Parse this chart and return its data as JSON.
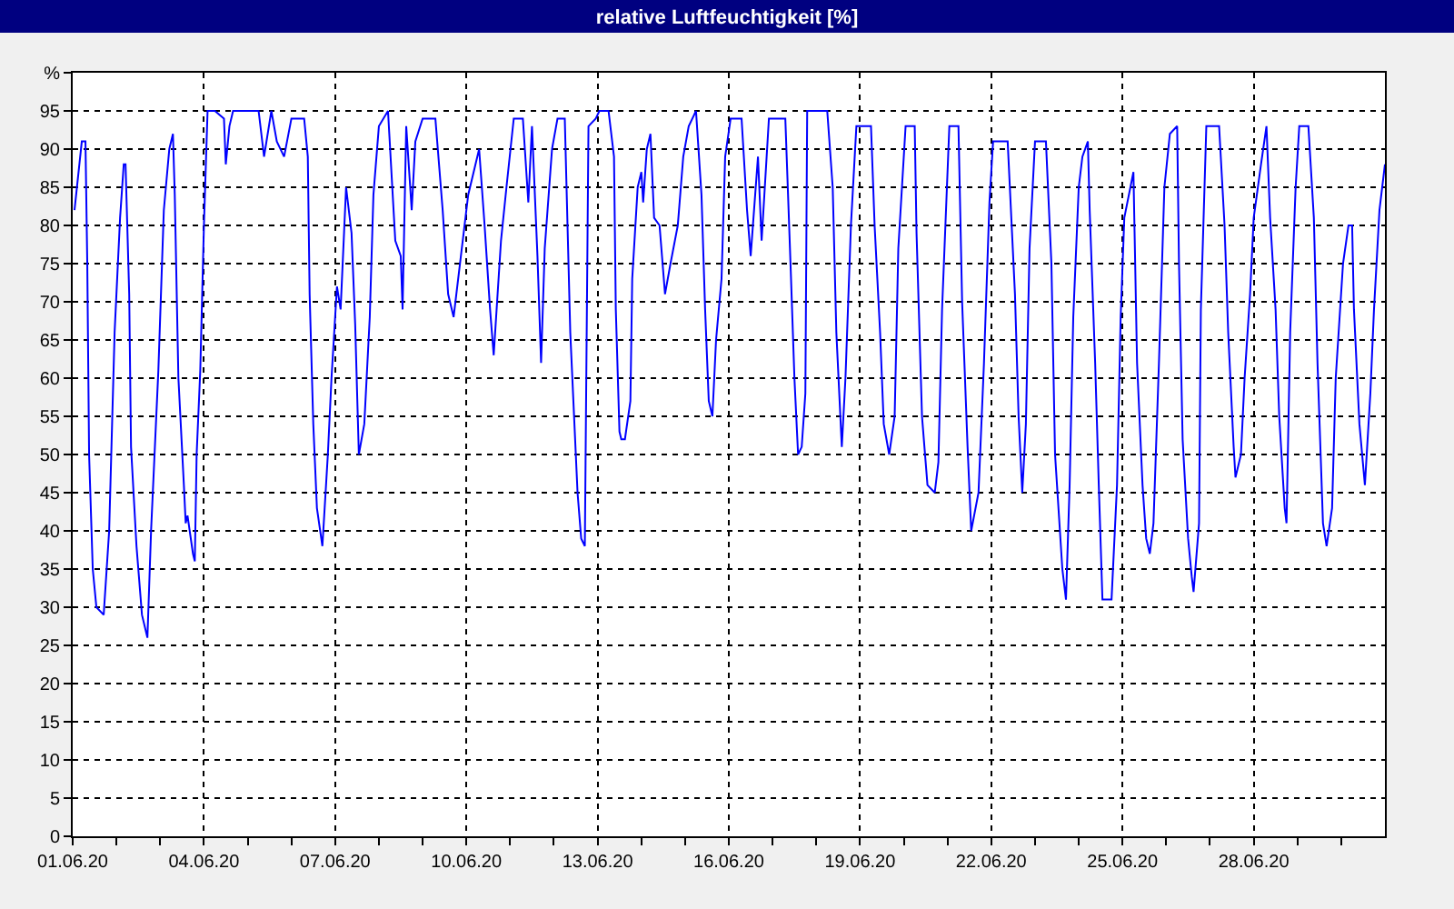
{
  "chart_data": {
    "type": "line",
    "title": "relative Luftfeuchtigkeit [%]",
    "series": [
      {
        "color": "#0000ff",
        "x": [
          "--06-01T01:00",
          "--06-01T05:00",
          "--06-01T07:00",
          "--06-01T08:00",
          "--06-01T09:00",
          "--06-01T11:00",
          "--06-01T13:00",
          "--06-01T17:00",
          "--06-01T20:00",
          "--06-01T23:00",
          "--06-02T02:00",
          "--06-02T04:00",
          "--06-02T05:00",
          "--06-02T07:00",
          "--06-02T08:00",
          "--06-02T11:00",
          "--06-02T14:00",
          "--06-02T17:00",
          "--06-02T19:00",
          "--06-02T23:00",
          "--06-03T02:00",
          "--06-03T05:00",
          "--06-03T07:00",
          "--06-03T08:00",
          "--06-03T10:00",
          "--06-03T13:00",
          "--06-03T14:00",
          "--06-03T15:00",
          "--06-03T18:00",
          "--06-03T19:00",
          "--06-03T20:00",
          "--06-03T22:00",
          "--06-04T00:00",
          "--06-04T02:00",
          "--06-04T06:00",
          "--06-04T11:00",
          "--06-04T12:00",
          "--06-04T14:00",
          "--06-04T16:00",
          "--06-05T06:00",
          "--06-05T09:00",
          "--06-05T13:00",
          "--06-05T16:00",
          "--06-05T20:00",
          "--06-06T00:00",
          "--06-06T07:00",
          "--06-06T09:00",
          "--06-06T10:00",
          "--06-06T12:00",
          "--06-06T14:00",
          "--06-06T17:00",
          "--06-06T20:00",
          "--06-06T22:00",
          "--06-07T01:00",
          "--06-07T03:00",
          "--06-07T06:00",
          "--06-07T09:00",
          "--06-07T11:00",
          "--06-07T13:00",
          "--06-07T16:00",
          "--06-07T19:00",
          "--06-07T21:00",
          "--06-08T00:00",
          "--06-08T05:00",
          "--06-08T09:00",
          "--06-08T12:00",
          "--06-08T13:00",
          "--06-08T15:00",
          "--06-08T18:00",
          "--06-08T20:00",
          "--06-09T00:00",
          "--06-09T07:00",
          "--06-09T11:00",
          "--06-09T14:00",
          "--06-09T17:00",
          "--06-09T21:00",
          "--06-10T01:00",
          "--06-10T07:00",
          "--06-10T10:00",
          "--06-10T13:00",
          "--06-10T15:00",
          "--06-10T19:00",
          "--06-10T22:00",
          "--06-11T02:00",
          "--06-11T07:00",
          "--06-11T10:00",
          "--06-11T12:00",
          "--06-11T15:00",
          "--06-11T17:00",
          "--06-11T19:00",
          "--06-11T23:00",
          "--06-12T02:00",
          "--06-12T06:00",
          "--06-12T09:00",
          "--06-12T13:00",
          "--06-12T15:00",
          "--06-12T17:00",
          "--06-12T19:00",
          "--06-12T23:00",
          "--06-13T01:00",
          "--06-13T06:00",
          "--06-13T09:00",
          "--06-13T10:00",
          "--06-13T12:00",
          "--06-13T13:00",
          "--06-13T15:00",
          "--06-13T18:00",
          "--06-13T19:00",
          "--06-13T22:00",
          "--06-14T00:00",
          "--06-14T01:00",
          "--06-14T03:00",
          "--06-14T05:00",
          "--06-14T07:00",
          "--06-14T10:00",
          "--06-14T13:00",
          "--06-14T16:00",
          "--06-14T20:00",
          "--06-14T23:00",
          "--06-15T02:00",
          "--06-15T06:00",
          "--06-15T09:00",
          "--06-15T11:00",
          "--06-15T13:00",
          "--06-15T15:00",
          "--06-15T17:00",
          "--06-15T20:00",
          "--06-15T22:00",
          "--06-16T01:00",
          "--06-16T07:00",
          "--06-16T10:00",
          "--06-16T12:00",
          "--06-16T16:00",
          "--06-16T18:00",
          "--06-16T22:00",
          "--06-17T07:00",
          "--06-17T10:00",
          "--06-17T12:00",
          "--06-17T14:00",
          "--06-17T16:00",
          "--06-17T18:00",
          "--06-17T19:00",
          "--06-18T06:00",
          "--06-18T09:00",
          "--06-18T11:00",
          "--06-18T14:00",
          "--06-18T16:00",
          "--06-18T19:00",
          "--06-18T22:00",
          "--06-19T06:00",
          "--06-19T08:00",
          "--06-19T11:00",
          "--06-19T13:00",
          "--06-19T16:00",
          "--06-19T19:00",
          "--06-19T21:00",
          "--06-20T01:00",
          "--06-20T06:00",
          "--06-20T07:00",
          "--06-20T10:00",
          "--06-20T13:00",
          "--06-20T17:00",
          "--06-20T19:00",
          "--06-20T21:00",
          "--06-21T01:00",
          "--06-21T06:00",
          "--06-21T08:00",
          "--06-21T11:00",
          "--06-21T13:00",
          "--06-21T17:00",
          "--06-21T20:00",
          "--06-21T23:00",
          "--06-22T01:00",
          "--06-22T09:00",
          "--06-22T13:00",
          "--06-22T15:00",
          "--06-22T17:00",
          "--06-22T19:00",
          "--06-22T21:00",
          "--06-23T00:00",
          "--06-23T06:00",
          "--06-23T09:00",
          "--06-23T11:00",
          "--06-23T15:00",
          "--06-23T17:00",
          "--06-23T19:00",
          "--06-23T21:00",
          "--06-24T00:00",
          "--06-24T02:00",
          "--06-24T05:00",
          "--06-24T06:00",
          "--06-24T09:00",
          "--06-24T11:00",
          "--06-24T13:00",
          "--06-24T18:00",
          "--06-24T21:00",
          "--06-24T23:00",
          "--06-25T01:00",
          "--06-25T06:00",
          "--06-25T08:00",
          "--06-25T11:00",
          "--06-25T13:00",
          "--06-25T15:00",
          "--06-25T17:00",
          "--06-25T20:00",
          "--06-25T23:00",
          "--06-26T02:00",
          "--06-26T06:00",
          "--06-26T07:00",
          "--06-26T09:00",
          "--06-26T12:00",
          "--06-26T14:00",
          "--06-26T15:00",
          "--06-26T18:00",
          "--06-26T19:00",
          "--06-26T22:00",
          "--06-27T05:00",
          "--06-27T08:00",
          "--06-27T10:00",
          "--06-27T13:00",
          "--06-27T14:00",
          "--06-27T17:00",
          "--06-27T19:00",
          "--06-27T22:00",
          "--06-28T00:00",
          "--06-28T04:00",
          "--06-28T07:00",
          "--06-28T09:00",
          "--06-28T12:00",
          "--06-28T14:00",
          "--06-28T17:00",
          "--06-28T18:00",
          "--06-28T20:00",
          "--06-28T23:00",
          "--06-29T01:00",
          "--06-29T06:00",
          "--06-29T09:00",
          "--06-29T11:00",
          "--06-29T14:00",
          "--06-29T16:00",
          "--06-29T19:00",
          "--06-29T21:00",
          "--06-30T01:00",
          "--06-30T04:00",
          "--06-30T06:00",
          "--06-30T07:00",
          "--06-30T10:00",
          "--06-30T13:00",
          "--06-30T16:00",
          "--06-30T18:00",
          "--06-30T21:00",
          "--07-01T00:00"
        ],
        "values": [
          82,
          91,
          91,
          75,
          50,
          35,
          30,
          29,
          40,
          66,
          81,
          88,
          88,
          71,
          51,
          38,
          29,
          26,
          40,
          61,
          82,
          90,
          92,
          84,
          60,
          46,
          41,
          42,
          37,
          36,
          50,
          61,
          80,
          95,
          95,
          94,
          88,
          93,
          95,
          95,
          89,
          95,
          91,
          89,
          94,
          94,
          89,
          71,
          54,
          43,
          38,
          50,
          60,
          72,
          69,
          85,
          79,
          67,
          50,
          54,
          68,
          84,
          93,
          95,
          78,
          76,
          69,
          93,
          82,
          91,
          94,
          94,
          82,
          71,
          68,
          76,
          84,
          90,
          80,
          69,
          63,
          78,
          85,
          94,
          94,
          83,
          93,
          76,
          62,
          77,
          90,
          94,
          94,
          66,
          45,
          39,
          38,
          93,
          94,
          95,
          95,
          89,
          69,
          53,
          52,
          52,
          57,
          73,
          85,
          87,
          83,
          90,
          92,
          81,
          80,
          71,
          75,
          80,
          89,
          93,
          95,
          84,
          69,
          57,
          55,
          65,
          73,
          89,
          94,
          94,
          82,
          76,
          89,
          78,
          94,
          94,
          74,
          60,
          50,
          51,
          58,
          95,
          95,
          85,
          66,
          51,
          60,
          80,
          93,
          93,
          80,
          66,
          54,
          50,
          55,
          77,
          93,
          93,
          79,
          55,
          46,
          45,
          49,
          69,
          93,
          93,
          70,
          51,
          40,
          45,
          62,
          83,
          91,
          91,
          71,
          55,
          45,
          54,
          77,
          91,
          91,
          75,
          50,
          35,
          31,
          46,
          68,
          85,
          89,
          91,
          82,
          62,
          46,
          31,
          31,
          46,
          68,
          81,
          87,
          62,
          46,
          39,
          37,
          41,
          62,
          85,
          92,
          93,
          75,
          52,
          39,
          34,
          32,
          41,
          69,
          93,
          93,
          80,
          66,
          51,
          47,
          50,
          60,
          71,
          81,
          88,
          93,
          81,
          69,
          55,
          43,
          41,
          66,
          85,
          93,
          93,
          81,
          62,
          41,
          38,
          43,
          60,
          75,
          80,
          80,
          69,
          54,
          46,
          58,
          69,
          82,
          88
        ]
      }
    ],
    "xlim": [
      "--06-01",
      "--07-01"
    ],
    "xticks": [
      {
        "value": "--06-01",
        "label": "01.06.20"
      },
      {
        "value": "--06-02",
        "label": null
      },
      {
        "value": "--06-03",
        "label": null
      },
      {
        "value": "--06-04",
        "label": "04.06.20"
      },
      {
        "value": "--06-05",
        "label": null
      },
      {
        "value": "--06-06",
        "label": null
      },
      {
        "value": "--06-07",
        "label": "07.06.20"
      },
      {
        "value": "--06-08",
        "label": null
      },
      {
        "value": "--06-09",
        "label": null
      },
      {
        "value": "--06-10",
        "label": "10.06.20"
      },
      {
        "value": "--06-11",
        "label": null
      },
      {
        "value": "--06-12",
        "label": null
      },
      {
        "value": "--06-13",
        "label": "13.06.20"
      },
      {
        "value": "--06-14",
        "label": null
      },
      {
        "value": "--06-15",
        "label": null
      },
      {
        "value": "--06-16",
        "label": "16.06.20"
      },
      {
        "value": "--06-17",
        "label": null
      },
      {
        "value": "--06-18",
        "label": null
      },
      {
        "value": "--06-19",
        "label": "19.06.20"
      },
      {
        "value": "--06-20",
        "label": null
      },
      {
        "value": "--06-21",
        "label": null
      },
      {
        "value": "--06-22",
        "label": "22.06.20"
      },
      {
        "value": "--06-23",
        "label": null
      },
      {
        "value": "--06-24",
        "label": null
      },
      {
        "value": "--06-25",
        "label": "25.06.20"
      },
      {
        "value": "--06-26",
        "label": null
      },
      {
        "value": "--06-27",
        "label": null
      },
      {
        "value": "--06-28",
        "label": "28.06.20"
      },
      {
        "value": "--06-29",
        "label": null
      },
      {
        "value": "--06-30",
        "label": null
      }
    ],
    "ylim": [
      0,
      100
    ],
    "yticks": [
      0,
      5,
      10,
      15,
      20,
      25,
      30,
      35,
      40,
      45,
      50,
      55,
      60,
      65,
      70,
      75,
      80,
      85,
      90,
      95,
      {
        "value": 100,
        "label": "%"
      }
    ],
    "grid": true,
    "marker": "none",
    "line_style": "solid"
  }
}
